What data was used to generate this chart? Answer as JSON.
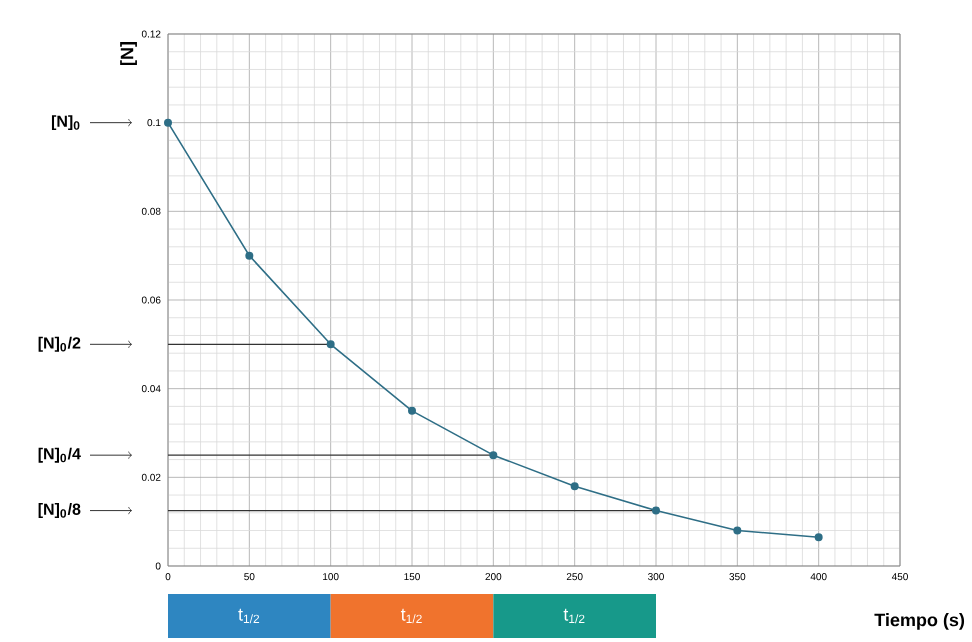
{
  "chart_data": {
    "type": "line",
    "xlabel": "Tiempo (s)",
    "ylabel": "[N]",
    "x": [
      0,
      50,
      100,
      150,
      200,
      250,
      300,
      350,
      400
    ],
    "series": [
      {
        "color": "#2e6e86",
        "values": [
          0.1,
          0.07,
          0.05,
          0.035,
          0.025,
          0.018,
          0.0125,
          0.008,
          0.0065
        ]
      },
      {
        "type": "line",
        "color": "#333333",
        "marker": "none",
        "x": [
          0,
          100
        ],
        "values": [
          0.05,
          0.05
        ]
      },
      {
        "type": "line",
        "color": "#333333",
        "marker": "none",
        "x": [
          0,
          200
        ],
        "values": [
          0.025,
          0.025
        ]
      },
      {
        "type": "line",
        "color": "#333333",
        "marker": "none",
        "x": [
          0,
          300
        ],
        "values": [
          0.0125,
          0.0125
        ]
      }
    ],
    "xlim": [
      0,
      450
    ],
    "ylim": [
      0,
      0.12
    ],
    "xticks": [
      0,
      50,
      100,
      150,
      200,
      250,
      300,
      350,
      400,
      450
    ],
    "yticks": [
      0,
      0.02,
      0.04,
      0.06,
      0.08,
      0.1,
      0.12
    ],
    "grid": true,
    "marker": "circle",
    "line_style": "solid",
    "annotations": [
      "[N]$_{0}$",
      "[N]$_{0}$/2",
      "[N]$_{0}$/4",
      "[N]$_{0}$/8",
      "t$_{1/2}$",
      "t$_{1/2}$",
      "t$_{1/2}$"
    ]
  }
}
